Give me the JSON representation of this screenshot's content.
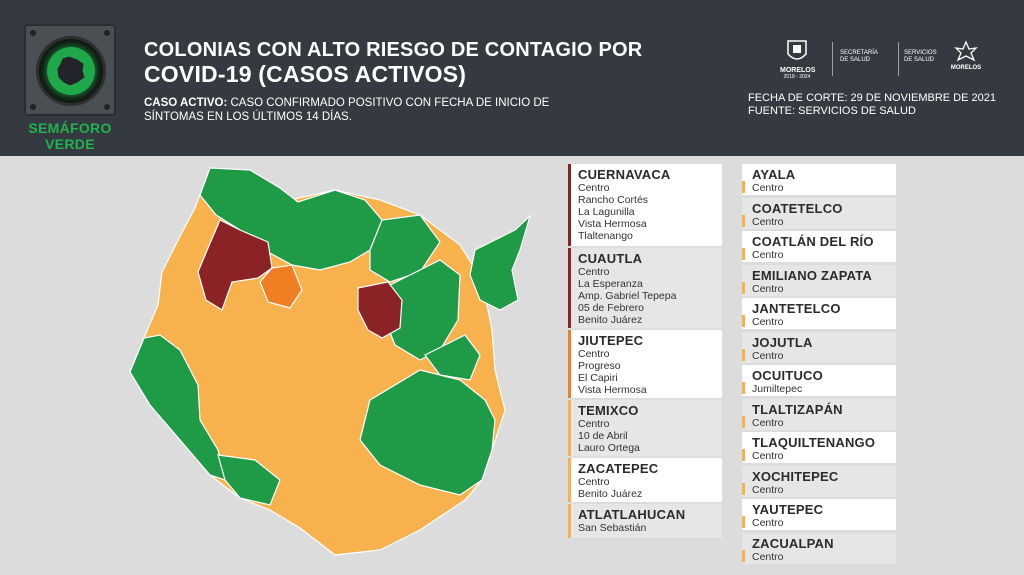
{
  "header": {
    "badge_label_1": "SEMÁFORO",
    "badge_label_2": "VERDE",
    "title_line1": "COLONIAS CON ALTO RIESGO DE CONTAGIO POR",
    "title_line2": "COVID-19 (CASOS ACTIVOS)",
    "definition_term": "CASO ACTIVO:",
    "definition_text": " CASO CONFIRMADO POSITIVO CON FECHA DE INICIO DE SÍNTOMAS EN LOS ÚLTIMOS 14 DÍAS.",
    "cutoff_date": "FECHA DE CORTE: 29 DE NOVIEMBRE DE 2021",
    "source": "FUENTE: SERVICIOS DE SALUD",
    "logos": {
      "morelos": "MORELOS",
      "morelos_years": "2018 - 2024",
      "secretaria_1": "SECRETARÍA",
      "secretaria_2": "DE SALUD",
      "servicios_1": "SERVICIOS",
      "servicios_2": "DE SALUD",
      "brand": "MORELOS"
    }
  },
  "colors": {
    "header_bg": "#353a40",
    "green": "#1f9a47",
    "orange_light": "#f7b24d",
    "orange": "#f07f24",
    "red": "#8b2226",
    "page_bg": "#dcdcdc"
  },
  "municipalities_left": [
    {
      "name": "CUERNAVACA",
      "risk": "red",
      "colonias": [
        "Centro",
        "Rancho Cortés",
        "La Lagunilla",
        "Vista Hermosa",
        "Tlaltenango"
      ]
    },
    {
      "name": "CUAUTLA",
      "risk": "red",
      "colonias": [
        "Centro",
        "La Esperanza",
        "Amp. Gabriel Tepepa",
        "05 de Febrero",
        "Benito Juárez"
      ]
    },
    {
      "name": "JIUTEPEC",
      "risk": "orange",
      "colonias": [
        "Centro",
        "Progreso",
        "El Capiri",
        "Vista Hermosa"
      ]
    },
    {
      "name": "TEMIXCO",
      "risk": "orange_light",
      "colonias": [
        "Centro",
        "10 de Abril",
        "Lauro Ortega"
      ]
    },
    {
      "name": "ZACATEPEC",
      "risk": "orange_light",
      "colonias": [
        "Centro",
        "Benito Juárez"
      ]
    },
    {
      "name": "ATLATLAHUCAN",
      "risk": "orange_light",
      "colonias": [
        "San Sebastián"
      ]
    }
  ],
  "municipalities_right": [
    {
      "name": "AYALA",
      "colonias": [
        "Centro"
      ]
    },
    {
      "name": "COATETELCO",
      "colonias": [
        "Centro"
      ]
    },
    {
      "name": "COATLÁN DEL RÍO",
      "colonias": [
        "Centro"
      ]
    },
    {
      "name": "EMILIANO ZAPATA",
      "colonias": [
        "Centro"
      ]
    },
    {
      "name": "JANTETELCO",
      "colonias": [
        "Centro"
      ]
    },
    {
      "name": "JOJUTLA",
      "colonias": [
        "Centro"
      ]
    },
    {
      "name": "OCUITUCO",
      "colonias": [
        "Jumiltepec"
      ]
    },
    {
      "name": "TLALTIZAPÁN",
      "colonias": [
        "Centro"
      ]
    },
    {
      "name": "TLAQUILTENANGO",
      "colonias": [
        "Centro"
      ]
    },
    {
      "name": "XOCHITEPEC",
      "colonias": [
        "Centro"
      ]
    },
    {
      "name": "YAUTEPEC",
      "colonias": [
        "Centro"
      ]
    },
    {
      "name": "ZACUALPAN",
      "colonias": [
        "Centro"
      ]
    }
  ]
}
